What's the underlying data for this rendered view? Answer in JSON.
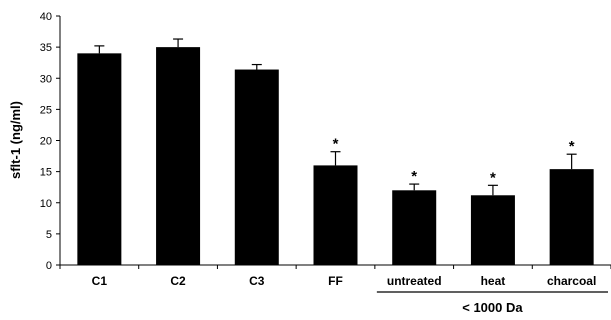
{
  "chart_data": {
    "type": "bar",
    "title": "",
    "xlabel": "",
    "ylabel": "sflt-1 (ng/ml)",
    "ylim": [
      0,
      40
    ],
    "yticks": [
      0,
      5,
      10,
      15,
      20,
      25,
      30,
      35,
      40
    ],
    "grid": false,
    "legend": "none",
    "bar_color": "#000000",
    "categories": [
      "C1",
      "C2",
      "C3",
      "FF",
      "untreated",
      "heat",
      "charcoal"
    ],
    "values": [
      34.0,
      35.0,
      31.4,
      16.0,
      12.0,
      11.2,
      15.4
    ],
    "error_up": [
      1.2,
      1.3,
      0.8,
      2.2,
      1.0,
      1.6,
      2.4
    ],
    "significance": [
      "",
      "",
      "",
      "*",
      "*",
      "*",
      "*"
    ],
    "group_bracket": {
      "label": "< 1000 Da",
      "from_category": "untreated",
      "to_category": "charcoal"
    }
  }
}
